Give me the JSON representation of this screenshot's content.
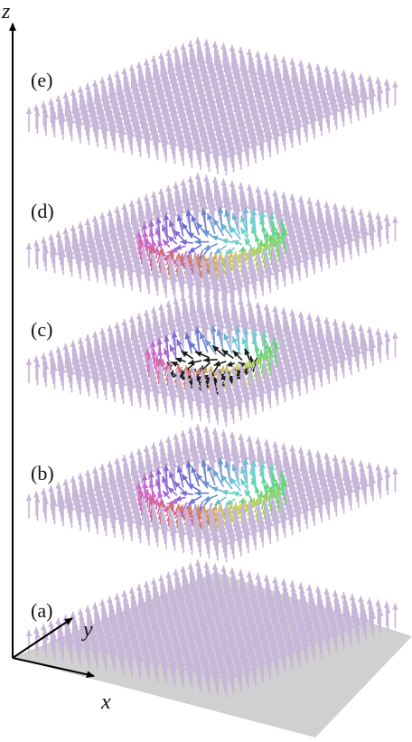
{
  "axes": {
    "z": "z",
    "x": "x",
    "y": "y"
  },
  "panels": [
    {
      "label": "(a)",
      "texture": "uniform"
    },
    {
      "label": "(b)",
      "texture": "skyrmion"
    },
    {
      "label": "(c)",
      "texture": "skyrmion-core"
    },
    {
      "label": "(d)",
      "texture": "skyrmion"
    },
    {
      "label": "(e)",
      "texture": "uniform"
    }
  ],
  "colors": {
    "uniform": "#c7b6d8",
    "core": "#1a1a1a",
    "plane": "#c8c8c8",
    "axis": "#000000"
  }
}
